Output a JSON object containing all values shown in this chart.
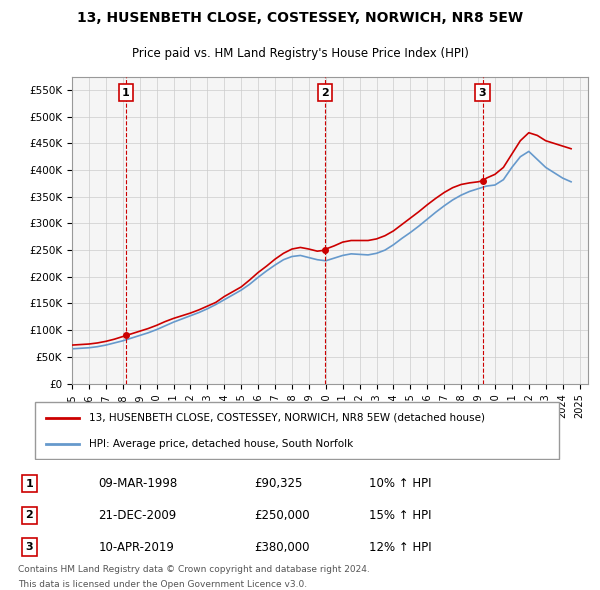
{
  "title": "13, HUSENBETH CLOSE, COSTESSEY, NORWICH, NR8 5EW",
  "subtitle": "Price paid vs. HM Land Registry's House Price Index (HPI)",
  "legend_label_red": "13, HUSENBETH CLOSE, COSTESSEY, NORWICH, NR8 5EW (detached house)",
  "legend_label_blue": "HPI: Average price, detached house, South Norfolk",
  "transactions": [
    {
      "num": 1,
      "date": "09-MAR-1998",
      "price": 90325,
      "x_year": 1998.19,
      "hpi_pct": "10%"
    },
    {
      "num": 2,
      "date": "21-DEC-2009",
      "price": 250000,
      "x_year": 2009.97,
      "hpi_pct": "15%"
    },
    {
      "num": 3,
      "date": "10-APR-2019",
      "price": 380000,
      "x_year": 2019.27,
      "hpi_pct": "12%"
    }
  ],
  "footnote1": "Contains HM Land Registry data © Crown copyright and database right 2024.",
  "footnote2": "This data is licensed under the Open Government Licence v3.0.",
  "ylim": [
    0,
    575000
  ],
  "xlim_start": 1995.0,
  "xlim_end": 2025.5,
  "yticks": [
    0,
    50000,
    100000,
    150000,
    200000,
    250000,
    300000,
    350000,
    400000,
    450000,
    500000,
    550000
  ],
  "ytick_labels": [
    "£0",
    "£50K",
    "£100K",
    "£150K",
    "£200K",
    "£250K",
    "£300K",
    "£350K",
    "£400K",
    "£450K",
    "£500K",
    "£550K"
  ],
  "xticks": [
    1995,
    1996,
    1997,
    1998,
    1999,
    2000,
    2001,
    2002,
    2003,
    2004,
    2005,
    2006,
    2007,
    2008,
    2009,
    2010,
    2011,
    2012,
    2013,
    2014,
    2015,
    2016,
    2017,
    2018,
    2019,
    2020,
    2021,
    2022,
    2023,
    2024,
    2025
  ],
  "red_color": "#cc0000",
  "blue_color": "#6699cc",
  "grid_color": "#cccccc",
  "bg_color": "#ffffff",
  "plot_bg_color": "#f5f5f5",
  "vline_color": "#cc0000",
  "red_x": [
    1995.0,
    1995.5,
    1996.0,
    1996.5,
    1997.0,
    1997.5,
    1998.0,
    1998.19,
    1998.5,
    1999.0,
    1999.5,
    2000.0,
    2000.5,
    2001.0,
    2001.5,
    2002.0,
    2002.5,
    2003.0,
    2003.5,
    2004.0,
    2004.5,
    2005.0,
    2005.5,
    2006.0,
    2006.5,
    2007.0,
    2007.5,
    2008.0,
    2008.5,
    2009.0,
    2009.5,
    2009.97,
    2010.0,
    2010.5,
    2011.0,
    2011.5,
    2012.0,
    2012.5,
    2013.0,
    2013.5,
    2014.0,
    2014.5,
    2015.0,
    2015.5,
    2016.0,
    2016.5,
    2017.0,
    2017.5,
    2018.0,
    2018.5,
    2019.0,
    2019.27,
    2019.5,
    2020.0,
    2020.5,
    2021.0,
    2021.5,
    2022.0,
    2022.5,
    2023.0,
    2023.5,
    2024.0,
    2024.5
  ],
  "red_y": [
    72000,
    73000,
    74000,
    76000,
    79000,
    83000,
    88000,
    90325,
    93000,
    98000,
    103000,
    109000,
    116000,
    122000,
    127000,
    132000,
    138000,
    145000,
    152000,
    163000,
    172000,
    181000,
    194000,
    208000,
    220000,
    233000,
    244000,
    252000,
    255000,
    252000,
    248000,
    250000,
    252000,
    258000,
    265000,
    268000,
    268000,
    268000,
    271000,
    277000,
    286000,
    298000,
    310000,
    322000,
    335000,
    347000,
    358000,
    367000,
    373000,
    376000,
    378000,
    380000,
    385000,
    392000,
    405000,
    430000,
    455000,
    470000,
    465000,
    455000,
    450000,
    445000,
    440000
  ],
  "blue_x": [
    1995.0,
    1995.5,
    1996.0,
    1996.5,
    1997.0,
    1997.5,
    1998.0,
    1998.5,
    1999.0,
    1999.5,
    2000.0,
    2000.5,
    2001.0,
    2001.5,
    2002.0,
    2002.5,
    2003.0,
    2003.5,
    2004.0,
    2004.5,
    2005.0,
    2005.5,
    2006.0,
    2006.5,
    2007.0,
    2007.5,
    2008.0,
    2008.5,
    2009.0,
    2009.5,
    2010.0,
    2010.5,
    2011.0,
    2011.5,
    2012.0,
    2012.5,
    2013.0,
    2013.5,
    2014.0,
    2014.5,
    2015.0,
    2015.5,
    2016.0,
    2016.5,
    2017.0,
    2017.5,
    2018.0,
    2018.5,
    2019.0,
    2019.5,
    2020.0,
    2020.5,
    2021.0,
    2021.5,
    2022.0,
    2022.5,
    2023.0,
    2023.5,
    2024.0,
    2024.5
  ],
  "blue_y": [
    65000,
    66000,
    67000,
    69000,
    72000,
    76000,
    80000,
    85000,
    90000,
    95000,
    101000,
    108000,
    115000,
    121000,
    127000,
    133000,
    140000,
    148000,
    157000,
    166000,
    175000,
    186000,
    199000,
    211000,
    222000,
    232000,
    238000,
    240000,
    236000,
    232000,
    230000,
    235000,
    240000,
    243000,
    242000,
    241000,
    244000,
    250000,
    260000,
    272000,
    283000,
    295000,
    308000,
    321000,
    333000,
    344000,
    353000,
    360000,
    365000,
    370000,
    372000,
    382000,
    405000,
    425000,
    435000,
    420000,
    405000,
    395000,
    385000,
    378000
  ]
}
